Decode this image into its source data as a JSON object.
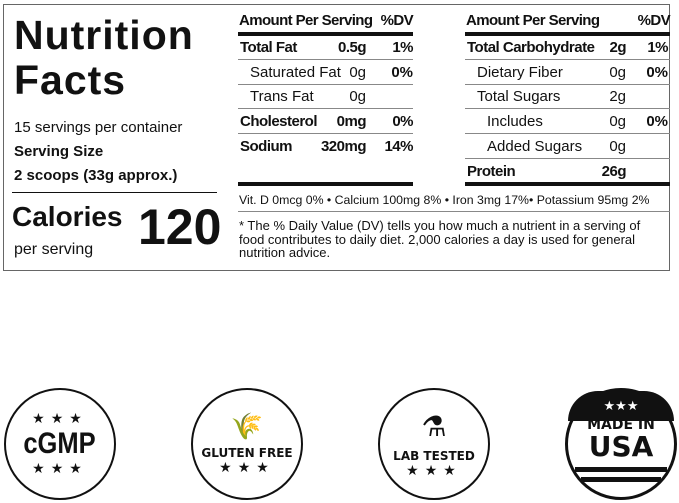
{
  "title_line1": "Nutrition",
  "title_line2": "Facts",
  "servings": "15 servings per container",
  "serving_size_label": "Serving Size",
  "serving_size": "2 scoops (33g approx.)",
  "calories_label": "Calories",
  "calories_sub": "per serving",
  "calories": "120",
  "left_table": {
    "header": "Amount Per Serving",
    "dv": "%DV",
    "rows": [
      {
        "name": "Total Fat",
        "amount": "0.5g",
        "dv": "1%",
        "bold": true,
        "indent": 0
      },
      {
        "name": "Saturated Fat",
        "amount": "0g",
        "dv": "0%",
        "bold": false,
        "indent": 1
      },
      {
        "name": "Trans Fat",
        "amount": "0g",
        "dv": "",
        "bold": false,
        "indent": 1
      },
      {
        "name": "Cholesterol",
        "amount": "0mg",
        "dv": "0%",
        "bold": true,
        "indent": 0
      },
      {
        "name": "Sodium",
        "amount": "320mg",
        "dv": "14%",
        "bold": true,
        "indent": 0
      }
    ]
  },
  "right_table": {
    "header": "Amount Per Serving",
    "dv": "%DV",
    "rows": [
      {
        "name": "Total Carbohydrate",
        "amount": "2g",
        "dv": "1%",
        "bold": true,
        "indent": 0
      },
      {
        "name": "Dietary Fiber",
        "amount": "0g",
        "dv": "0%",
        "bold": false,
        "indent": 1
      },
      {
        "name": "Total Sugars",
        "amount": "2g",
        "dv": "",
        "bold": false,
        "indent": 1
      },
      {
        "name": "Includes",
        "amount": "0g",
        "dv": "0%",
        "bold": false,
        "indent": 2
      },
      {
        "name": "Added Sugars",
        "amount": "0g",
        "dv": "",
        "bold": false,
        "indent": 2
      },
      {
        "name": "Protein",
        "amount": "26g",
        "dv": "",
        "bold": true,
        "indent": 0
      }
    ]
  },
  "vitamins": "Vit. D 0mcg 0% • Calcium 100mg 8% • Iron 3mg 17%• Potassium 95mg 2%",
  "footnote": "* The % Daily Value (DV) tells you how much a nutrient in a serving of food contributes to daily diet. 2,000 calories a day is used for general nutrition advice.",
  "badges": {
    "cgmp": "cGMP",
    "gluten": "GLUTEN FREE",
    "lab": "LAB TESTED",
    "usa1": "MADE IN",
    "usa2": "USA"
  }
}
